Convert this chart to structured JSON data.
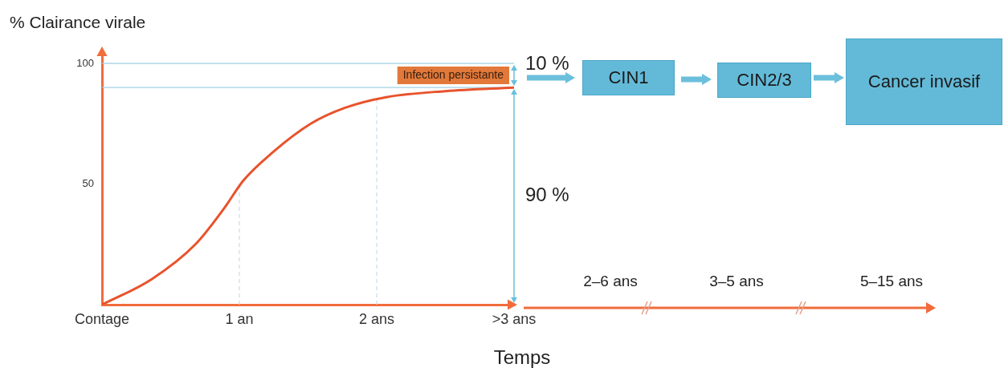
{
  "chart_data": {
    "type": "line",
    "ylabel": "% Clairance virale",
    "xlabel": "Temps",
    "x": [
      0,
      0.36,
      0.68,
      0.89,
      1.03,
      1.24,
      1.52,
      1.77,
      2.07,
      2.5,
      3
    ],
    "series": [
      {
        "color": "#e8532c",
        "values": [
          0,
          10.5,
          25,
          40,
          51.5,
          63,
          75,
          81.6,
          86,
          88.5,
          90
        ]
      }
    ],
    "xlim": [
      0,
      3
    ],
    "xticks": [
      {
        "value": 0,
        "label": "Contage"
      },
      {
        "value": 1,
        "label": "1 an"
      },
      {
        "value": 2,
        "label": "2 ans"
      },
      {
        "value": 3,
        "label": ">3 ans"
      }
    ],
    "ylim": [
      0,
      105
    ],
    "yticks": [
      50,
      100
    ],
    "grid": false,
    "legend": false,
    "marker": "none",
    "line_style": "solid",
    "ref_lines": [
      {
        "axis": "y",
        "value": 100,
        "color": "#9fd0e6",
        "line_style": "solid"
      },
      {
        "axis": "y",
        "value": 90,
        "color": "#9fd0e6",
        "line_style": "solid"
      },
      {
        "axis": "x",
        "value": 1,
        "color": "#c8dde8",
        "line_style": "dashed"
      },
      {
        "axis": "x",
        "value": 2,
        "color": "#c8dde8",
        "line_style": "dashed"
      }
    ],
    "annotations": [
      "Infection persistante",
      "10 %",
      "90 %",
      "CIN1",
      "CIN2/3",
      "Cancer invasif",
      "2–6 ans",
      "3–5 ans",
      "5–15 ans"
    ]
  }
}
